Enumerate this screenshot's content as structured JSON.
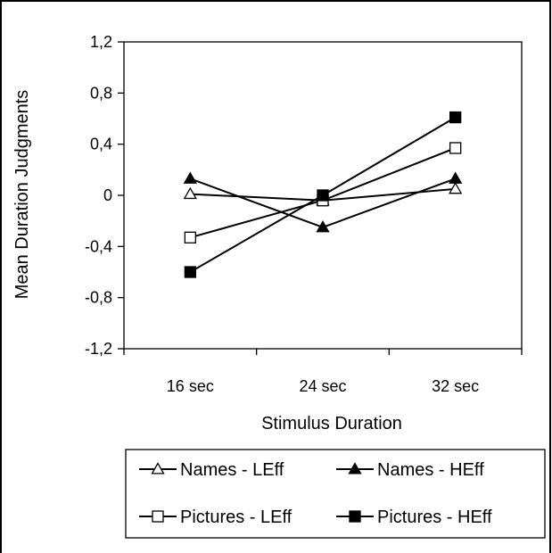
{
  "chart_data": {
    "type": "line",
    "title": "",
    "xlabel": "Stimulus Duration",
    "ylabel": "Mean Duration Judgments",
    "categories": [
      "16 sec",
      "24 sec",
      "32 sec"
    ],
    "yticks": [
      "1,2",
      "0,8",
      "0,4",
      "0",
      "-0,4",
      "-0,8",
      "-1,2"
    ],
    "ylim": [
      -1.2,
      1.2
    ],
    "grid": false,
    "legend_position": "bottom",
    "series": [
      {
        "name": "Names - LEff",
        "marker": "open-triangle",
        "values": [
          0.01,
          -0.04,
          0.05
        ]
      },
      {
        "name": "Names - HEff",
        "marker": "filled-triangle",
        "values": [
          0.13,
          -0.25,
          0.13
        ]
      },
      {
        "name": "Pictures - LEff",
        "marker": "open-square",
        "values": [
          -0.33,
          -0.04,
          0.37
        ]
      },
      {
        "name": "Pictures - HEff",
        "marker": "filled-square",
        "values": [
          -0.6,
          0.0,
          0.61
        ]
      }
    ]
  }
}
